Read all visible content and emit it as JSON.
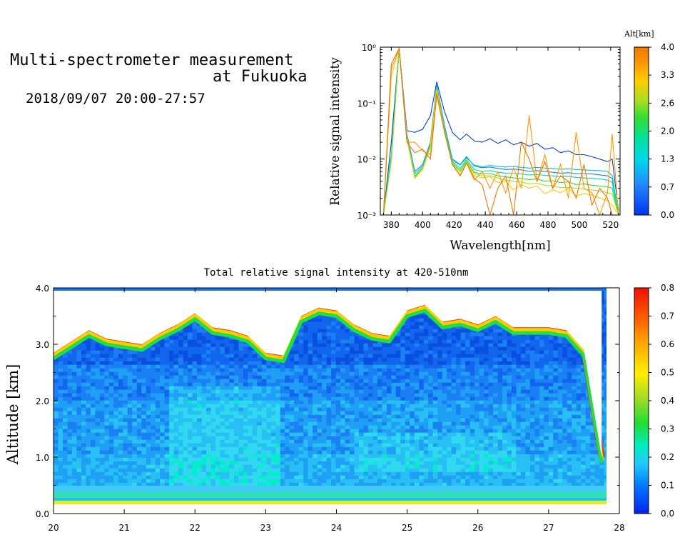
{
  "header": {
    "title_line1": "Multi-spectrometer measurement",
    "title_line2": "at Fukuoka",
    "subtitle": "2018/09/07 20:00-27:57"
  },
  "chart_data": [
    {
      "type": "line",
      "xlabel": "Wavelength[nm]",
      "ylabel": "Relative signal intensity",
      "xlim": [
        373,
        526
      ],
      "ylim": [
        0.001,
        1
      ],
      "yscale": "log",
      "x_ticks": [
        "380",
        "400",
        "420",
        "440",
        "460",
        "480",
        "500",
        "520"
      ],
      "y_ticks": [
        "10⁻³",
        "10⁻²",
        "10⁻¹",
        "10⁰"
      ],
      "legend_title": "Alt[km]",
      "colorbar_ticks": [
        "4.0",
        "3.3",
        "2.6",
        "2.0",
        "1.3",
        "0.7",
        "0.0"
      ],
      "x": [
        375,
        380,
        385,
        390,
        395,
        400,
        405,
        409,
        414,
        419,
        424,
        428,
        433,
        438,
        443,
        448,
        453,
        458,
        463,
        468,
        473,
        478,
        483,
        488,
        493,
        498,
        503,
        508,
        513,
        518,
        521,
        525
      ],
      "series": [
        {
          "color": "#0044cc",
          "values": [
            0.001,
            0.02,
            0.95,
            0.032,
            0.03,
            0.034,
            0.06,
            0.24,
            0.07,
            0.03,
            0.022,
            0.028,
            0.021,
            0.02,
            0.023,
            0.019,
            0.022,
            0.018,
            0.02,
            0.017,
            0.019,
            0.015,
            0.016,
            0.013,
            0.014,
            0.012,
            0.012,
            0.011,
            0.01,
            0.009,
            0.01,
            0.0012
          ]
        },
        {
          "color": "#2277ff",
          "values": [
            0.001,
            0.01,
            0.95,
            0.028,
            0.006,
            0.008,
            0.02,
            0.21,
            0.04,
            0.01,
            0.008,
            0.011,
            0.0075,
            0.007,
            0.0072,
            0.0068,
            0.0065,
            0.0066,
            0.0064,
            0.006,
            0.0062,
            0.006,
            0.0058,
            0.0056,
            0.0057,
            0.0055,
            0.0055,
            0.0054,
            0.0052,
            0.005,
            0.0045,
            0.001
          ]
        },
        {
          "color": "#00c8d8",
          "values": [
            0.001,
            0.012,
            0.95,
            0.026,
            0.0055,
            0.0075,
            0.019,
            0.2,
            0.038,
            0.0095,
            0.0078,
            0.0105,
            0.0078,
            0.0073,
            0.0077,
            0.0074,
            0.0072,
            0.0074,
            0.0071,
            0.0069,
            0.0071,
            0.0069,
            0.0068,
            0.0066,
            0.0067,
            0.0065,
            0.0064,
            0.0063,
            0.0062,
            0.006,
            0.005,
            0.001
          ]
        },
        {
          "color": "#00e0a0",
          "values": [
            0.001,
            0.011,
            0.93,
            0.025,
            0.005,
            0.007,
            0.018,
            0.19,
            0.035,
            0.009,
            0.0068,
            0.0098,
            0.0065,
            0.006,
            0.0062,
            0.0058,
            0.0056,
            0.0055,
            0.0054,
            0.0052,
            0.0053,
            0.0051,
            0.005,
            0.0048,
            0.0049,
            0.0047,
            0.0046,
            0.0045,
            0.0044,
            0.0042,
            0.0038,
            0.001
          ]
        },
        {
          "color": "#33dd33",
          "values": [
            0.001,
            0.01,
            0.9,
            0.024,
            0.0048,
            0.0068,
            0.017,
            0.18,
            0.033,
            0.0085,
            0.0062,
            0.0092,
            0.0058,
            0.0054,
            0.0055,
            0.005,
            0.0048,
            0.0046,
            0.0045,
            0.0043,
            0.0044,
            0.004,
            0.0041,
            0.0038,
            0.0039,
            0.0035,
            0.0036,
            0.0034,
            0.0033,
            0.0032,
            0.003,
            0.001
          ]
        },
        {
          "color": "#aadd22",
          "values": [
            0.001,
            0.009,
            0.9,
            0.024,
            0.0047,
            0.0067,
            0.017,
            0.18,
            0.032,
            0.0082,
            0.0058,
            0.009,
            0.0055,
            0.005,
            0.005,
            0.0046,
            0.0042,
            0.004,
            0.0039,
            0.0036,
            0.0037,
            0.0034,
            0.0033,
            0.0031,
            0.0031,
            0.003,
            0.0029,
            0.0028,
            0.0027,
            0.0025,
            0.0024,
            0.001
          ]
        },
        {
          "color": "#ffc800",
          "values": [
            0.001,
            0.3,
            0.95,
            0.022,
            0.0045,
            0.0065,
            0.016,
            0.17,
            0.03,
            0.008,
            0.0052,
            0.0087,
            0.005,
            0.0046,
            0.0048,
            0.0038,
            0.004,
            0.0028,
            0.0035,
            0.003,
            0.0033,
            0.0024,
            0.0028,
            0.0025,
            0.003,
            0.0022,
            0.0024,
            0.0023,
            0.002,
            0.0018,
            0.0015,
            0.001
          ]
        },
        {
          "color": "#ff9900",
          "values": [
            0.001,
            0.4,
            0.95,
            0.02,
            0.02,
            0.014,
            0.012,
            0.15,
            0.03,
            0.008,
            0.005,
            0.0085,
            0.0042,
            0.006,
            0.003,
            0.006,
            0.0025,
            0.007,
            0.003,
            0.06,
            0.004,
            0.012,
            0.003,
            0.008,
            0.002,
            0.03,
            0.003,
            0.0025,
            0.001,
            0.0025,
            0.028,
            0.001
          ]
        },
        {
          "color": "#ee7700",
          "values": [
            0.001,
            0.5,
            0.95,
            0.02,
            0.013,
            0.015,
            0.01,
            0.14,
            0.03,
            0.008,
            0.005,
            0.0085,
            0.0045,
            0.0035,
            0.001,
            0.003,
            0.005,
            0.001,
            0.02,
            0.01,
            0.004,
            0.009,
            0.003,
            0.005,
            0.004,
            0.002,
            0.008,
            0.0015,
            0.003,
            0.002,
            0.001,
            0.001
          ]
        }
      ]
    },
    {
      "type": "heatmap",
      "title": "Total relative signal intensity at 420-510nm",
      "xlabel": "",
      "ylabel": "Altitude [km]",
      "xlim": [
        20,
        28
      ],
      "ylim": [
        0,
        4
      ],
      "x_ticks": [
        "20",
        "21",
        "22",
        "23",
        "24",
        "25",
        "26",
        "27",
        "28"
      ],
      "y_ticks": [
        "0.0",
        "1.0",
        "2.0",
        "3.0",
        "4.0"
      ],
      "colorbar_ticks": [
        "0.8",
        "0.7",
        "0.6",
        "0.5",
        "0.4",
        "0.3",
        "0.2",
        "0.1",
        "0.0"
      ],
      "colorbar_range": [
        0,
        0.8
      ],
      "time_hours": [
        20.0,
        20.25,
        20.5,
        20.75,
        21.0,
        21.25,
        21.5,
        21.75,
        22.0,
        22.25,
        22.5,
        22.75,
        23.0,
        23.25,
        23.5,
        23.75,
        24.0,
        24.25,
        24.5,
        24.75,
        25.0,
        25.25,
        25.5,
        25.75,
        26.0,
        26.25,
        26.5,
        26.75,
        27.0,
        27.25,
        27.5,
        27.75
      ],
      "cloud_base_km": [
        2.85,
        3.05,
        3.25,
        3.1,
        3.05,
        3.0,
        3.2,
        3.35,
        3.55,
        3.3,
        3.25,
        3.15,
        2.85,
        2.8,
        3.5,
        3.65,
        3.6,
        3.35,
        3.2,
        3.15,
        3.6,
        3.7,
        3.4,
        3.45,
        3.35,
        3.5,
        3.3,
        3.3,
        3.3,
        3.25,
        2.9,
        1.0
      ]
    }
  ]
}
